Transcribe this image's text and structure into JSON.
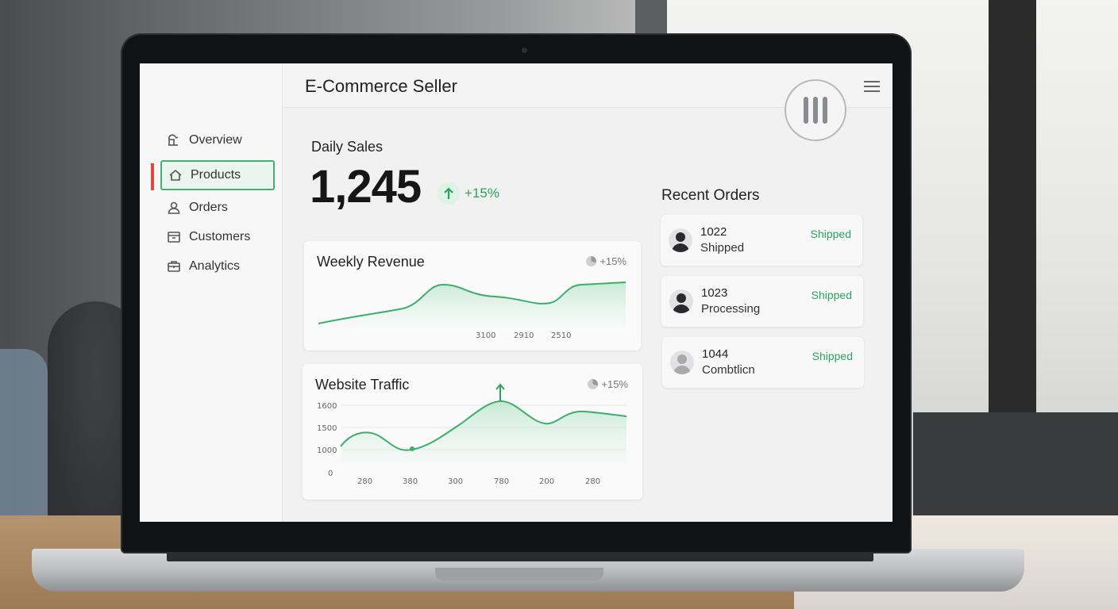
{
  "app": {
    "title": "E-Commerce Seller"
  },
  "sidebar": {
    "items": [
      {
        "label": "Overview",
        "icon": "overview-icon",
        "active": false
      },
      {
        "label": "Products",
        "icon": "home-icon",
        "active": true
      },
      {
        "label": "Orders",
        "icon": "user-icon",
        "active": false
      },
      {
        "label": "Customers",
        "icon": "box-icon",
        "active": false
      },
      {
        "label": "Analytics",
        "icon": "briefcase-icon",
        "active": false
      }
    ]
  },
  "daily_sales": {
    "label": "Daily Sales",
    "value": "1,245",
    "delta": "+15%"
  },
  "colors": {
    "accent": "#2aa45c",
    "active_border": "#43b06f",
    "active_marker": "#e0473f"
  },
  "weekly_revenue": {
    "title": "Weekly Revenue",
    "badge": "+15%",
    "x_ticks": [
      "3100",
      "2910",
      "2510"
    ]
  },
  "website_traffic": {
    "title": "Website Traffic",
    "badge": "+15%",
    "y_ticks": [
      "1600",
      "1500",
      "1000",
      "0"
    ],
    "x_ticks": [
      "280",
      "380",
      "300",
      "780",
      "200",
      "280"
    ]
  },
  "recent_orders": {
    "title": "Recent Orders",
    "orders": [
      {
        "id": "1022",
        "status": "Shipped",
        "right_status": "Shipped"
      },
      {
        "id": "1023",
        "status": "Processing",
        "right_status": "Shipped"
      },
      {
        "id": "1044",
        "status": "Combtlicn",
        "right_status": "Shipped"
      }
    ]
  }
}
